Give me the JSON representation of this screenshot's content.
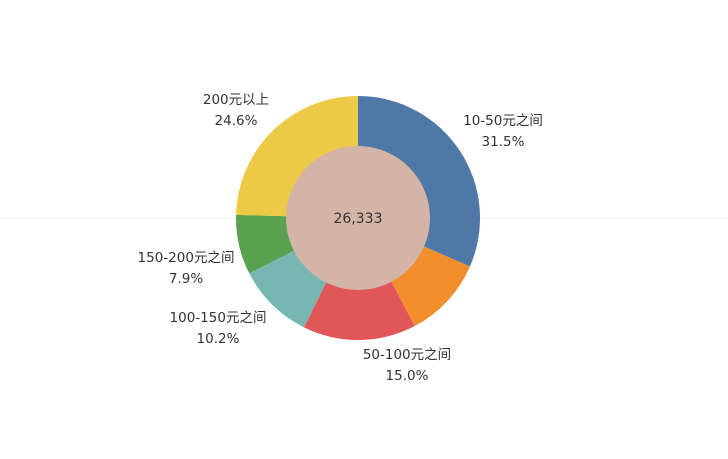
{
  "chart_data": {
    "type": "pie",
    "donut": true,
    "center_label": "26,333",
    "slices": [
      {
        "label": "10-50元之间",
        "value": 31.5,
        "value_label": "31.5%",
        "color": "#4e79a7"
      },
      {
        "label": "50-100元之间",
        "value": 15.0,
        "value_label": "15.0%",
        "color": "#e15759"
      },
      {
        "label": "100-150元之间",
        "value": 10.2,
        "value_label": "10.2%",
        "color": "#76b7b2"
      },
      {
        "label": "150-200元之间",
        "value": 7.9,
        "value_label": "7.9%",
        "color": "#59a14f"
      },
      {
        "label": "200元以上",
        "value": 24.6,
        "value_label": "24.6%",
        "color": "#edc948"
      }
    ],
    "unlabeled_slices": [
      {
        "value": 10.8,
        "color": "#f28e2b"
      }
    ],
    "center_color": "#d4b4a6",
    "legend": false
  }
}
